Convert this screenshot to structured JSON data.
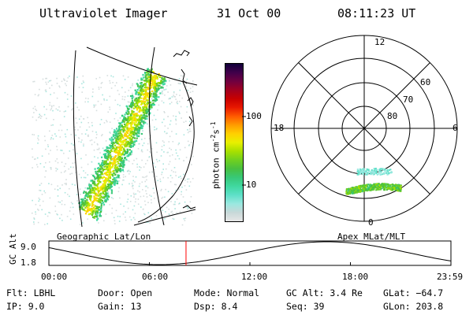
{
  "header": {
    "instrument": "Ultraviolet Imager",
    "date": "31 Oct 00",
    "time": "08:11:23 UT"
  },
  "geo_panel": {
    "label": "Geographic Lat/Lon"
  },
  "polar_panel": {
    "label": "Apex MLat/MLT",
    "mlt_labels": [
      "12",
      "18",
      "6",
      "0"
    ],
    "lat_labels": [
      "60",
      "70",
      "80"
    ]
  },
  "colorbar": {
    "unit_label": "photon cm",
    "unit_exp1": "-2",
    "unit_s": "s",
    "unit_exp2": "-1",
    "ticks": [
      "100",
      "10"
    ],
    "colors": [
      "#e6e6e6",
      "#c8d8d8",
      "#9ae8e0",
      "#5ee0c8",
      "#40d8a0",
      "#38c878",
      "#48c040",
      "#70d020",
      "#a8e000",
      "#e8f000",
      "#ffd000",
      "#ff9c00",
      "#ff5a00",
      "#e81800",
      "#c80000",
      "#a00020",
      "#700040",
      "#40004a",
      "#10003a"
    ]
  },
  "timeline": {
    "ylabel": "GC Alt",
    "ymax": "9.0",
    "ymin": "1.8",
    "ticks": [
      "00:00",
      "06:00",
      "12:00",
      "18:00",
      "23:59"
    ],
    "current_time_fraction": 0.3411,
    "marker_color": "#ff0000"
  },
  "info": {
    "flt": "Flt:  LBHL",
    "ip": "IP:  9.0",
    "door": "Door: Open",
    "gain": "Gain: 13",
    "mode": "Mode: Normal",
    "dsp": "Dsp:     8.4",
    "gcalt": "GC Alt: 3.4 Re",
    "seq": "Seq: 39",
    "glat": "GLat: −64.7",
    "glon": "GLon: 203.8"
  }
}
